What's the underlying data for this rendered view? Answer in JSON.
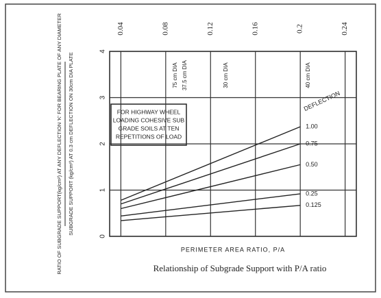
{
  "chart_data": {
    "type": "line",
    "title": "Relationship of Subgrade Support with P/A ratio",
    "x_label": "PERIMETER AREA RATIO, P/A",
    "y_label": "RATIO OF SUBGRADE SUPPORT(kg/cm²) AT ANY DEFLECTION 'K' FOR BEARING PLATE OF ANY DIAMETER",
    "y_label_2": "SUBGRADE SUPPORT (kg/cm²) AT 0.3 cm DEFLECTION ON 30cm DIA PLATE",
    "annotation": [
      "FOR HIGHWAY WHEEL",
      "LOADING COHESIVE SUB",
      "GRADE SOILS AT TEN",
      "REPETITIONS OF LOAD"
    ],
    "legend_title": "DEFLECTION",
    "plates": [
      "75 cm DIA",
      "37.5 cm DIA",
      "30 cm DIA",
      "40 cm DIA"
    ],
    "x": [
      0.04,
      0.2
    ],
    "series": [
      {
        "name": "1.00",
        "color": "#222",
        "values": [
          0.78,
          2.37
        ]
      },
      {
        "name": "0.75",
        "color": "#222",
        "values": [
          0.7,
          2.0
        ]
      },
      {
        "name": "0.50",
        "color": "#222",
        "values": [
          0.6,
          1.55
        ]
      },
      {
        "name": "0.25",
        "color": "#222",
        "values": [
          0.44,
          0.92
        ]
      },
      {
        "name": "0.125",
        "color": "#222",
        "values": [
          0.34,
          0.67
        ]
      }
    ],
    "xlim": [
      0.03,
      0.25
    ],
    "xticks": [
      0.04,
      0.08,
      0.12,
      0.16,
      0.2,
      0.24
    ],
    "ylim": [
      0,
      4
    ],
    "yticks": [
      0,
      1,
      2,
      3,
      4
    ],
    "grid": true
  }
}
